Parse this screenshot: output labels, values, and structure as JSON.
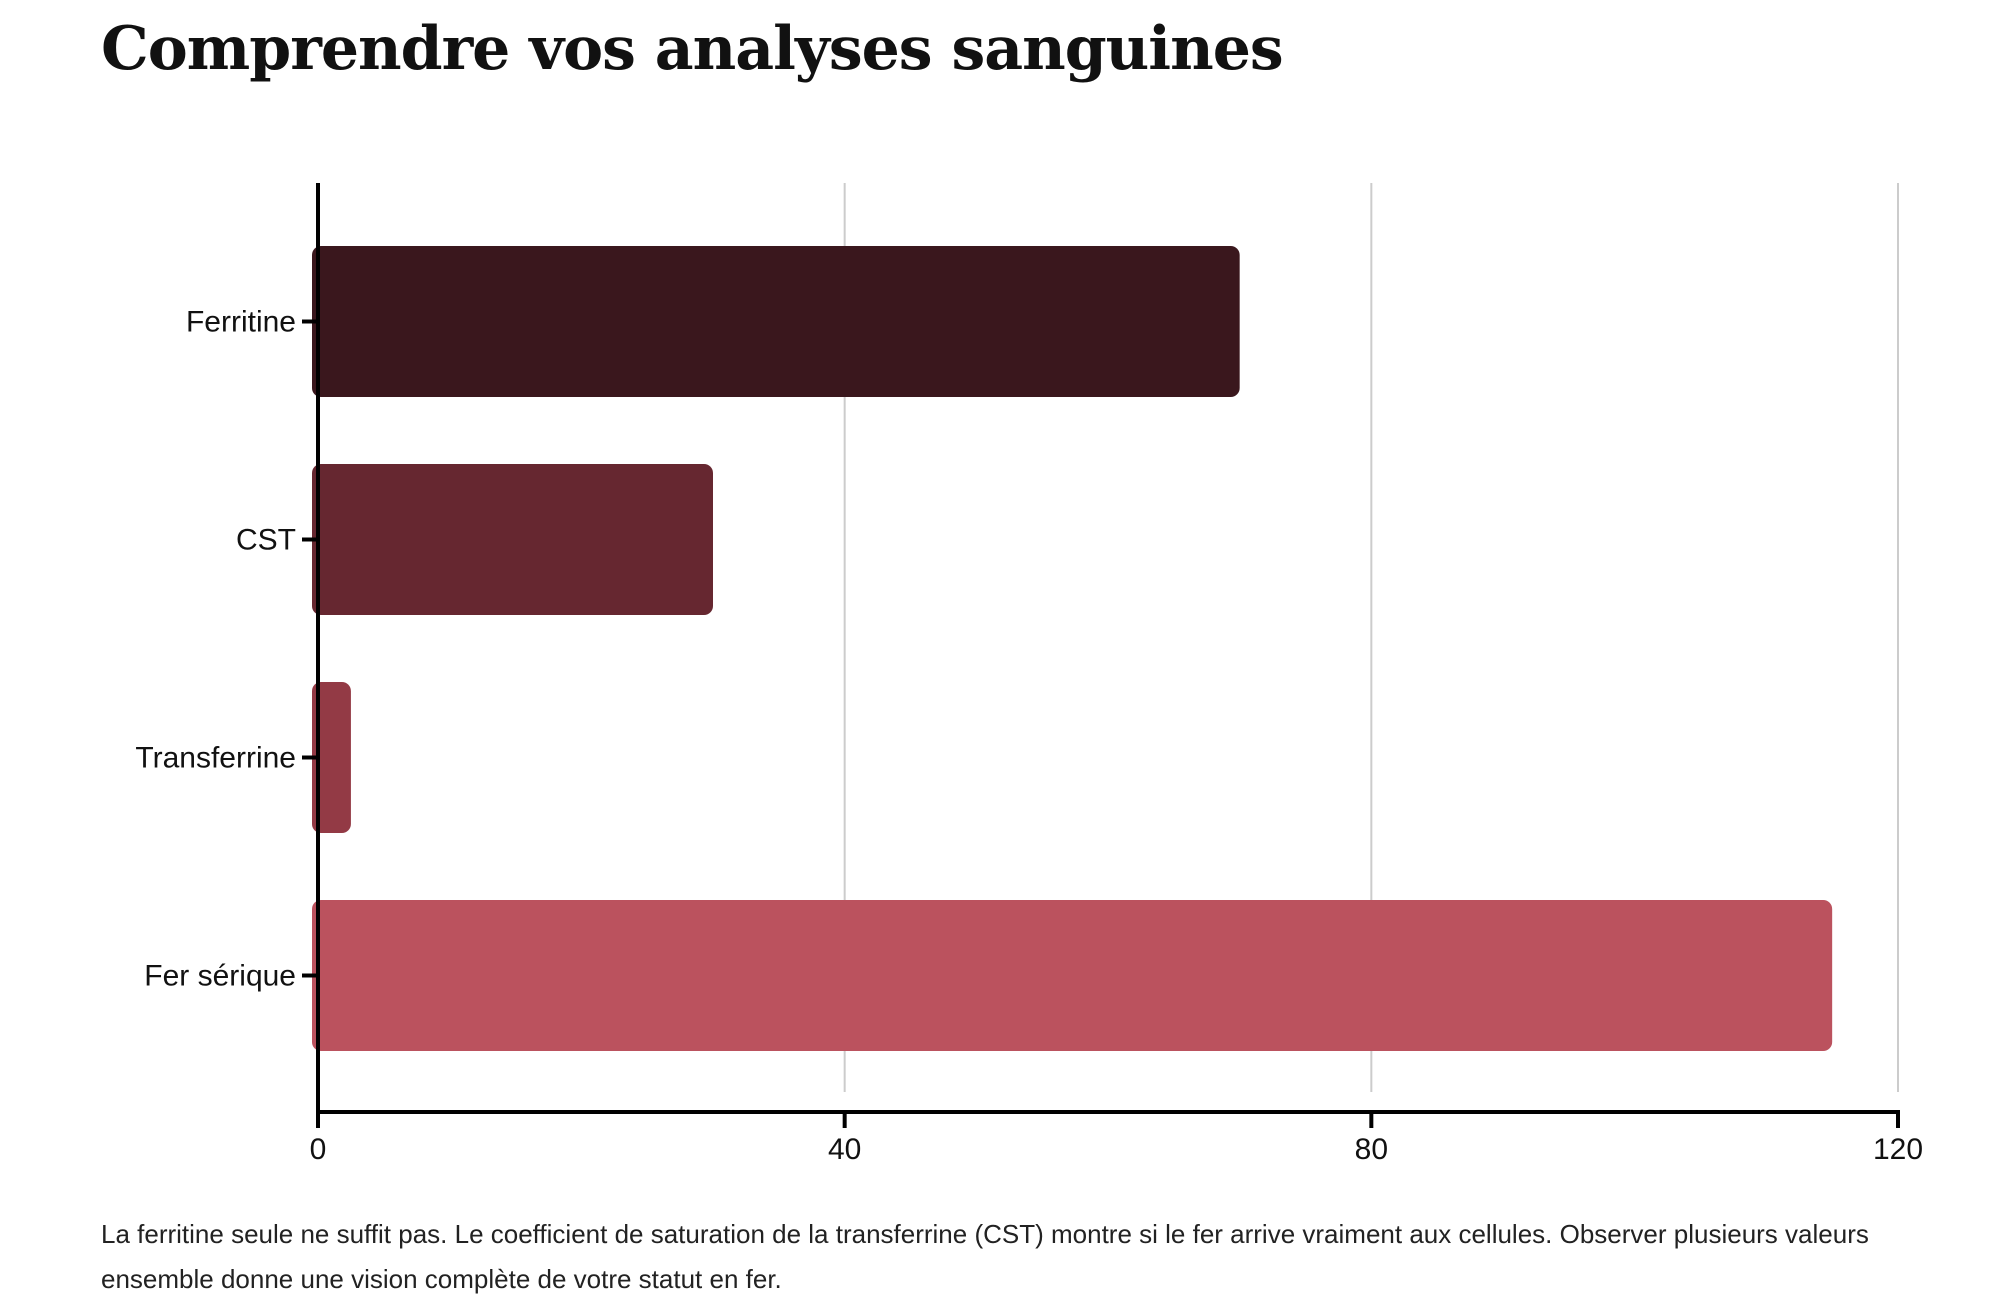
{
  "title": "Comprendre vos analyses sanguines",
  "caption": "La ferritine seule ne suffit pas. Le coefficient de saturation de la transferrine (CST) montre si le fer arrive vraiment aux cellules. Observer plusieurs valeurs ensemble donne une vision complète de votre statut en fer.",
  "chart_data": {
    "type": "bar",
    "orientation": "horizontal",
    "title": "Comprendre vos analyses sanguines",
    "xlabel": "",
    "ylabel": "",
    "categories": [
      "Ferritine",
      "CST",
      "Transferrine",
      "Fer sérique"
    ],
    "values": [
      70,
      30,
      2.5,
      115
    ],
    "colors": [
      "#3a171d",
      "#662730",
      "#933a45",
      "#bb525e"
    ],
    "xlim": [
      0,
      120
    ],
    "xticks": [
      0,
      40,
      80,
      120
    ],
    "xtick_labels": [
      "0",
      "40",
      "80",
      "120"
    ],
    "grid": "vertical",
    "legend": "none"
  }
}
